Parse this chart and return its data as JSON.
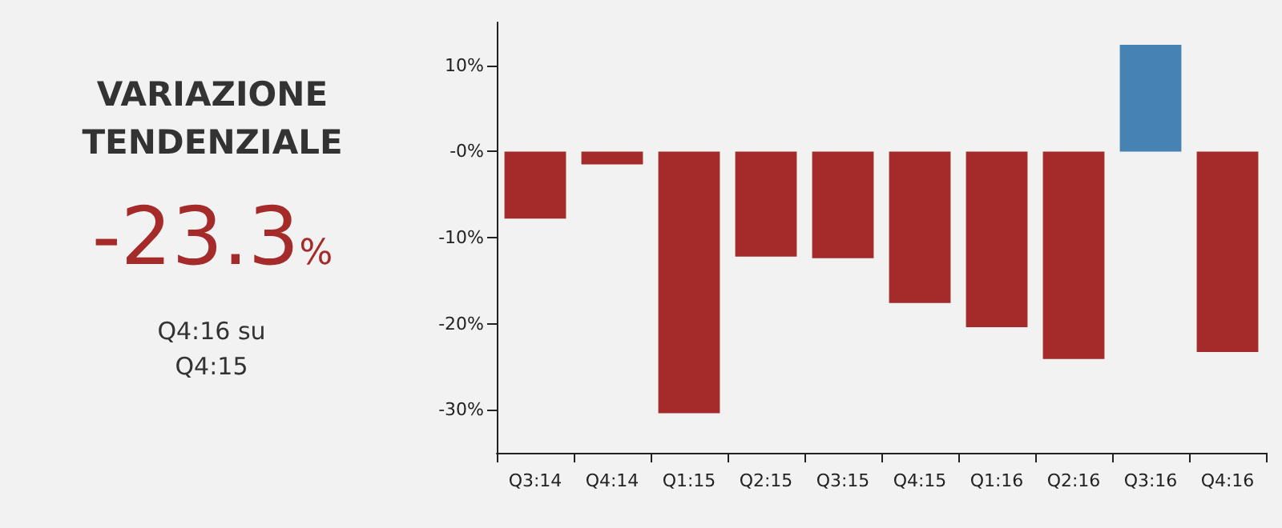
{
  "chart_data": [
    {
      "type": "other",
      "title": "VARIAZIONE TENDENZIALE",
      "annotations": [
        "-23.3%",
        "Q4:16 su Q4:15"
      ],
      "color": "#a52a2a"
    },
    {
      "type": "bar",
      "categories": [
        "Q3:14",
        "Q4:14",
        "Q1:15",
        "Q2:15",
        "Q3:15",
        "Q4:15",
        "Q1:16",
        "Q2:16",
        "Q3:16",
        "Q4:16"
      ],
      "values": [
        -7.8,
        -1.5,
        -30.4,
        -12.2,
        -12.4,
        -17.6,
        -20.4,
        -24.1,
        12.4,
        -23.3
      ],
      "colors": [
        "#a52a2a",
        "#a52a2a",
        "#a52a2a",
        "#a52a2a",
        "#a52a2a",
        "#a52a2a",
        "#a52a2a",
        "#a52a2a",
        "#4682b4",
        "#a52a2a"
      ],
      "ylim": [
        -35,
        15
      ],
      "yticks": [
        {
          "value": 10,
          "label": "10%"
        },
        {
          "value": 0,
          "label": "-0%"
        },
        {
          "value": -10,
          "label": "-10%"
        },
        {
          "value": -20,
          "label": "-20%"
        },
        {
          "value": -30,
          "label": "-30%"
        }
      ],
      "grid": false
    }
  ]
}
